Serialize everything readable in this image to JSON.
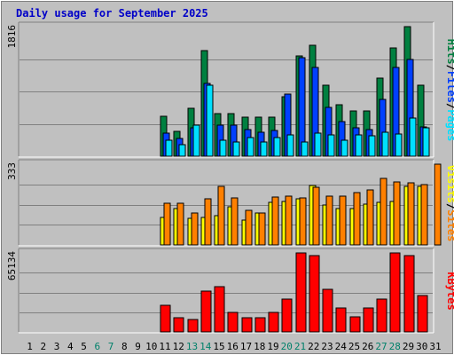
{
  "title": "Daily usage for September 2025",
  "colors": {
    "background": "#c0c0c0",
    "title": "#0000c8",
    "hits": "#008040",
    "files": "#0040ff",
    "pages": "#00e0ff",
    "visits": "#ffff00",
    "sites": "#ff8000",
    "kbytes": "#ff0000",
    "weekend_day": "#00806a",
    "separator": "#000000",
    "text": "#000000"
  },
  "chart_data": {
    "type": "bar",
    "title": "Daily usage for September 2025",
    "grid": true,
    "categories": [
      "1",
      "2",
      "3",
      "4",
      "5",
      "6",
      "7",
      "8",
      "9",
      "10",
      "11",
      "12",
      "13",
      "14",
      "15",
      "16",
      "17",
      "18",
      "19",
      "20",
      "21",
      "22",
      "23",
      "24",
      "25",
      "26",
      "27",
      "28",
      "29",
      "30",
      "31"
    ],
    "weekend_days": [
      "6",
      "7",
      "13",
      "14",
      "20",
      "21",
      "27",
      "28"
    ],
    "panels": [
      {
        "name": "hits-files-pages",
        "ymax_label": "1816",
        "ylim": [
          0,
          1816
        ],
        "legend": [
          {
            "text": "Hits",
            "color": "#008040"
          },
          {
            "text": "/",
            "color": "#000000"
          },
          {
            "text": "Files",
            "color": "#0040ff"
          },
          {
            "text": "/",
            "color": "#000000"
          },
          {
            "text": "Pages",
            "color": "#00e0ff"
          }
        ],
        "series": [
          {
            "name": "Hits",
            "color": "#008040",
            "values": [
              0,
              0,
              0,
              0,
              0,
              0,
              0,
              0,
              0,
              0,
              560,
              353,
              671,
              1475,
              593,
              600,
              553,
              553,
              553,
              830,
              1400,
              1550,
              1000,
              726,
              630,
              630,
              1100,
              1513,
              1816,
              995,
              0
            ]
          },
          {
            "name": "Files",
            "color": "#0040ff",
            "values": [
              0,
              0,
              0,
              0,
              0,
              0,
              0,
              0,
              0,
              0,
              320,
              250,
              400,
              1020,
              430,
              430,
              368,
              332,
              360,
              870,
              1380,
              1240,
              690,
              485,
              400,
              370,
              800,
              1240,
              1360,
              410,
              0
            ]
          },
          {
            "name": "Pages",
            "color": "#00e0ff",
            "values": [
              0,
              0,
              0,
              0,
              0,
              0,
              0,
              0,
              0,
              0,
              220,
              160,
              440,
              1000,
              220,
              200,
              260,
              200,
              260,
              300,
              200,
              325,
              300,
              220,
              300,
              290,
              340,
              310,
              540,
              400,
              0
            ]
          }
        ]
      },
      {
        "name": "visits-sites",
        "ymax_label": "333",
        "ylim": [
          0,
          333
        ],
        "legend": [
          {
            "text": "Visits",
            "color": "#ffff00"
          },
          {
            "text": "/",
            "color": "#000000"
          },
          {
            "text": "Sites",
            "color": "#ff8000"
          }
        ],
        "series": [
          {
            "name": "Visits",
            "color": "#ffff00",
            "values": [
              0,
              0,
              0,
              0,
              0,
              0,
              0,
              0,
              0,
              0,
              115,
              150,
              110,
              115,
              120,
              158,
              103,
              130,
              177,
              180,
              190,
              244,
              164,
              150,
              150,
              168,
              175,
              180,
              240,
              240,
              0
            ]
          },
          {
            "name": "Sites",
            "color": "#ff8000",
            "values": [
              0,
              0,
              0,
              0,
              0,
              0,
              0,
              0,
              0,
              0,
              173,
              173,
              133,
              191,
              240,
              195,
              141,
              133,
              197,
              200,
              195,
              237,
              200,
              200,
              217,
              228,
              275,
              260,
              255,
              250,
              333
            ]
          }
        ]
      },
      {
        "name": "kbytes",
        "ymax_label": "65134",
        "ylim": [
          0,
          65134
        ],
        "legend": [
          {
            "text": "KBytes",
            "color": "#ff0000"
          }
        ],
        "series": [
          {
            "name": "KBytes",
            "color": "#ff0000",
            "values": [
              0,
              0,
              0,
              0,
              0,
              0,
              0,
              0,
              0,
              0,
              22000,
              12000,
              10500,
              34000,
              37000,
              16000,
              12000,
              12000,
              16000,
              27000,
              65134,
              63000,
              35000,
              20000,
              12500,
              20000,
              27000,
              65134,
              63000,
              30000,
              0
            ]
          }
        ]
      }
    ]
  }
}
